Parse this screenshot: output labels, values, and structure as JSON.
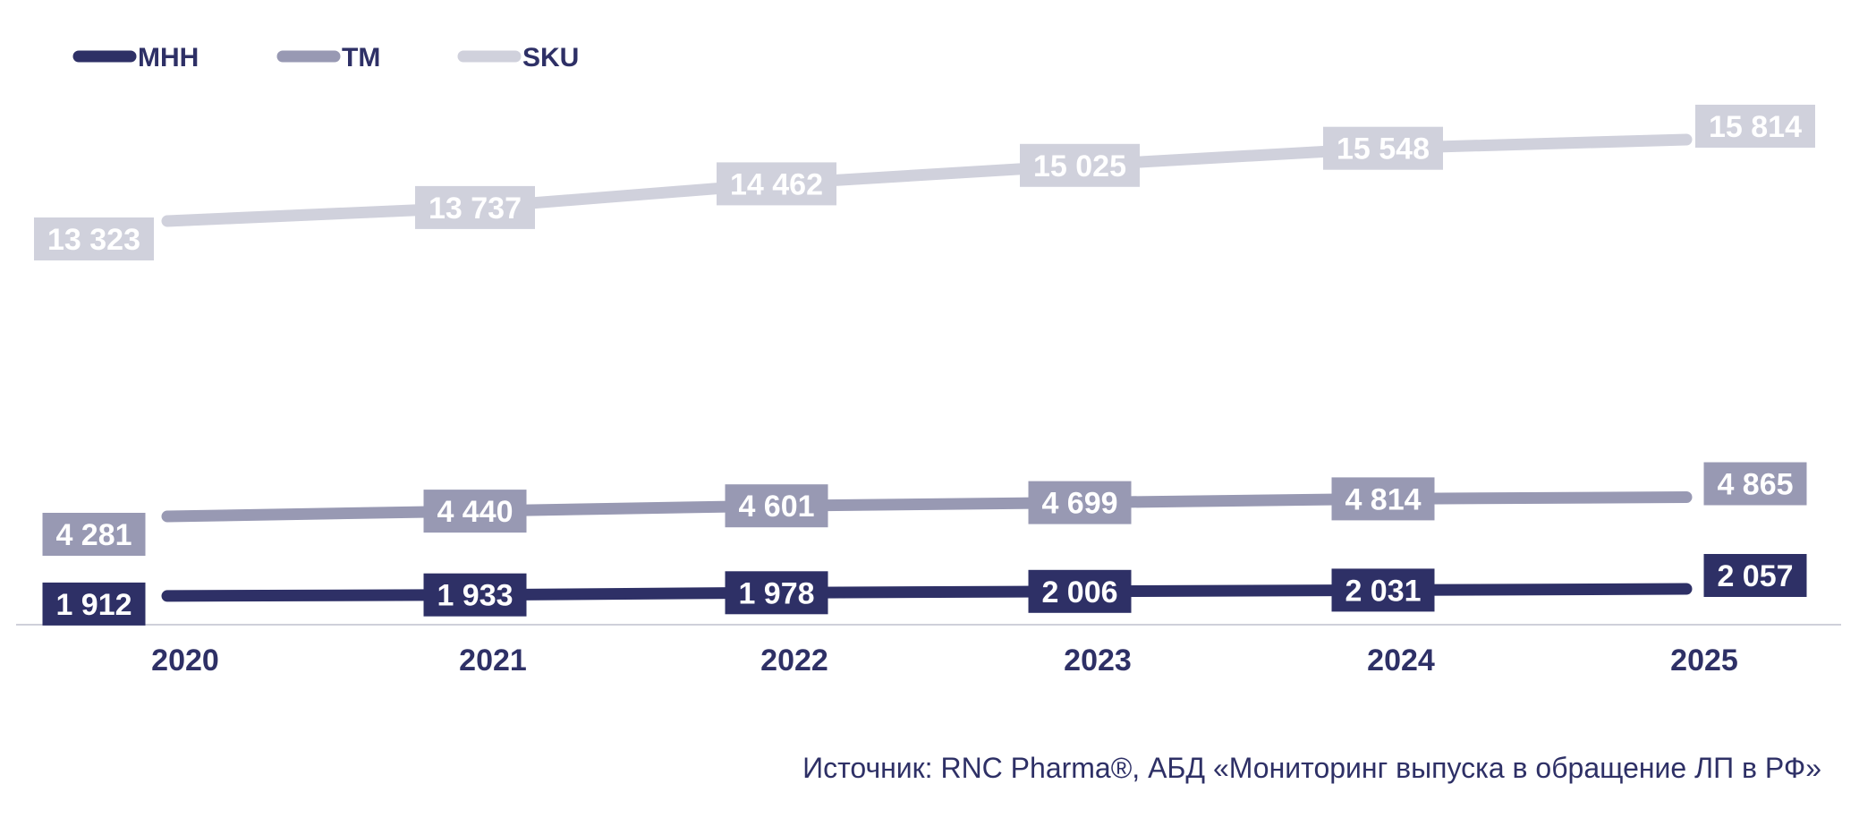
{
  "chart_data": {
    "type": "line",
    "categories": [
      "2020",
      "2021",
      "2022",
      "2023",
      "2024",
      "2025"
    ],
    "series": [
      {
        "name": "МНН",
        "color": "#2e3066",
        "values": [
          1912,
          1933,
          1978,
          2006,
          2031,
          2057
        ],
        "labels": [
          "1 912",
          "1 933",
          "1 978",
          "2 006",
          "2 031",
          "2 057"
        ]
      },
      {
        "name": "ТМ",
        "color": "#9899b3",
        "values": [
          4281,
          4440,
          4601,
          4699,
          4814,
          4865
        ],
        "labels": [
          "4 281",
          "4 440",
          "4 601",
          "4 699",
          "4 814",
          "4 865"
        ]
      },
      {
        "name": "SKU",
        "color": "#d0d1dc",
        "values": [
          13323,
          13737,
          14462,
          15025,
          15548,
          15814
        ],
        "labels": [
          "13 323",
          "13 737",
          "14 462",
          "15 025",
          "15 548",
          "15 814"
        ]
      }
    ],
    "legend_position": "top-left",
    "grid": false,
    "axis_line_color": "#cfd0da"
  },
  "source": "Источник: RNC Pharma®, АБД «Мониторинг выпуска в обращение ЛП в РФ»"
}
